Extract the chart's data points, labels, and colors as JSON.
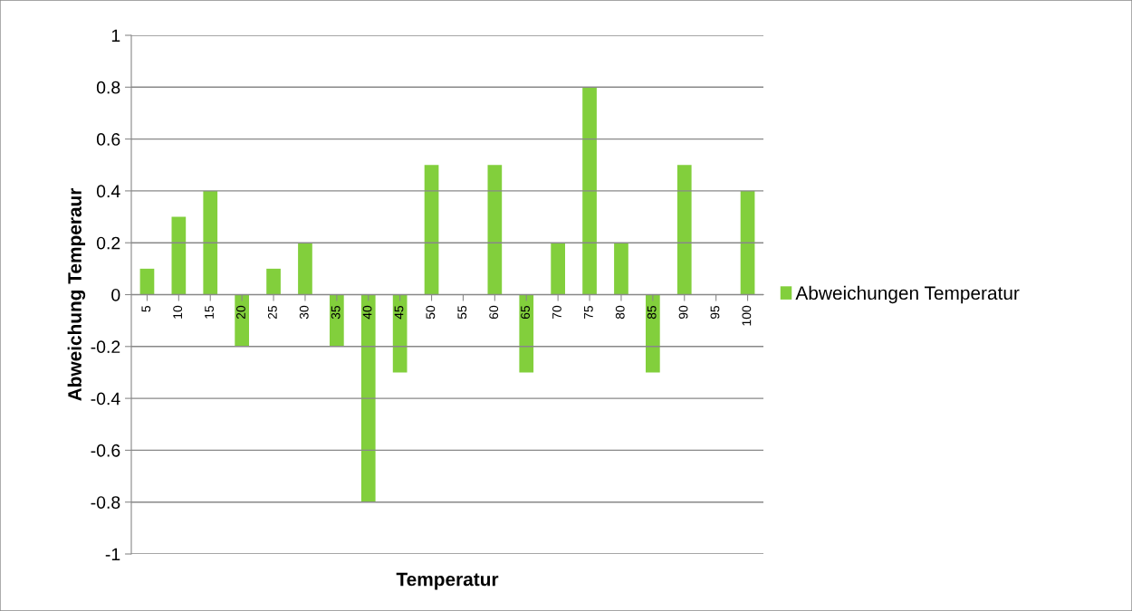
{
  "chart_data": {
    "type": "bar",
    "xlabel": "Temperatur",
    "ylabel": "Abweichung Temperaur",
    "categories": [
      "5",
      "10",
      "15",
      "20",
      "25",
      "30",
      "35",
      "40",
      "45",
      "50",
      "55",
      "60",
      "65",
      "70",
      "75",
      "80",
      "85",
      "90",
      "95",
      "100"
    ],
    "series": [
      {
        "name": "Abweichungen Temperatur",
        "color": "#82cf3c",
        "values": [
          0.1,
          0.3,
          0.4,
          -0.2,
          0.1,
          0.2,
          -0.2,
          -0.8,
          -0.3,
          0.5,
          0,
          0.5,
          -0.3,
          0.2,
          0.8,
          0.2,
          -0.3,
          0.5,
          0,
          0.4
        ]
      }
    ],
    "ylim": [
      -1,
      1
    ],
    "yticks": [
      -1,
      -0.8,
      -0.6,
      -0.4,
      -0.2,
      0,
      0.2,
      0.4,
      0.6,
      0.8,
      1
    ],
    "grid": "y",
    "legend": "right"
  }
}
